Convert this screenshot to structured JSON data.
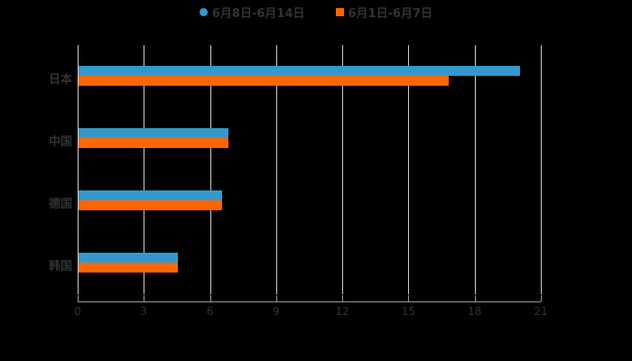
{
  "chart_data": {
    "type": "bar",
    "orientation": "horizontal",
    "categories": [
      "日本",
      "中国",
      "德国",
      "韩国"
    ],
    "series": [
      {
        "name": "6月8日-6月14日",
        "color": "#3399cc",
        "values": [
          20.0,
          6.8,
          6.5,
          4.5
        ]
      },
      {
        "name": "6月1日-6月7日",
        "color": "#ff6600",
        "values": [
          16.8,
          6.8,
          6.5,
          4.5
        ]
      }
    ],
    "xticks": [
      "0",
      "3",
      "6",
      "9",
      "12",
      "15",
      "18",
      "21"
    ],
    "xlim": [
      0,
      21
    ],
    "grid": true,
    "legend_position": "top"
  },
  "legend": {
    "series1": "6月8日-6月14日",
    "series2": "6月1日-6月7日"
  }
}
